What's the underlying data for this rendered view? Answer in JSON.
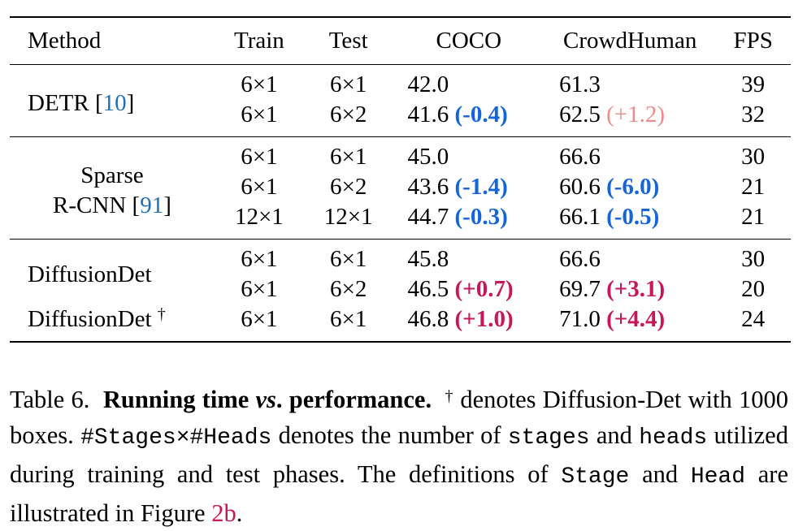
{
  "table": {
    "headers": {
      "method": "Method",
      "train": "Train",
      "test": "Test",
      "coco": "COCO",
      "crowdhuman": "CrowdHuman",
      "fps": "FPS"
    },
    "groups": {
      "detr": {
        "method_name": "DETR [",
        "cite": "10",
        "method_close": "]",
        "rows": [
          {
            "train": "6×1",
            "test": "6×1",
            "coco": "42.0",
            "coco_delta": "",
            "crowd": "61.3",
            "crowd_delta": "",
            "fps": "39"
          },
          {
            "train": "6×1",
            "test": "6×2",
            "coco": "41.6",
            "coco_delta": "(-0.4)",
            "crowd": "62.5",
            "crowd_delta": "(+1.2)",
            "fps": "32"
          }
        ]
      },
      "sparse": {
        "method_line1": "Sparse",
        "method_line2": "R-CNN [",
        "cite": "91",
        "method_close": "]",
        "rows": [
          {
            "train": "6×1",
            "test": "6×1",
            "coco": "45.0",
            "coco_delta": "",
            "crowd": "66.6",
            "crowd_delta": "",
            "fps": "30"
          },
          {
            "train": "6×1",
            "test": "6×2",
            "coco": "43.6",
            "coco_delta": "(-1.4)",
            "crowd": "60.6",
            "crowd_delta": "(-6.0)",
            "fps": "21"
          },
          {
            "train": "12×1",
            "test": "12×1",
            "coco": "44.7",
            "coco_delta": "(-0.3)",
            "crowd": "66.1",
            "crowd_delta": "(-0.5)",
            "fps": "21"
          }
        ]
      },
      "diffusion": {
        "method_a": "DiffusionDet",
        "method_b": "DiffusionDet",
        "dagger": "†",
        "rows": [
          {
            "train": "6×1",
            "test": "6×1",
            "coco": "45.8",
            "coco_delta": "",
            "crowd": "66.6",
            "crowd_delta": "",
            "fps": "30"
          },
          {
            "train": "6×1",
            "test": "6×2",
            "coco": "46.5",
            "coco_delta": "(+0.7)",
            "crowd": "69.7",
            "crowd_delta": "(+3.1)",
            "fps": "20"
          },
          {
            "train": "6×1",
            "test": "6×1",
            "coco": "46.8",
            "coco_delta": "(+1.0)",
            "crowd": "71.0",
            "crowd_delta": "(+4.4)",
            "fps": "24"
          }
        ]
      }
    }
  },
  "caption": {
    "label": "Table 6.",
    "title_a": "Running time",
    "title_vs": "vs",
    "title_b": ". performance.",
    "dagger": "†",
    "text1": " denotes Diffusion-Det with 1000 boxes. ",
    "mono1": "#Stages×#Heads",
    "text2": " denotes the number of ",
    "mono2": "stages",
    "text3": " and ",
    "mono3": "heads",
    "text4": " utilized during training and test phases. The definitions of ",
    "mono4": "Stage",
    "text5": " and ",
    "mono5": "Head",
    "text6": " are illustrated in Figure ",
    "fig_ref": "2b",
    "text7": "."
  },
  "colors": {
    "cite": "#1f6fb3",
    "delta_blue": "#1565d8",
    "delta_light": "#ee8a8a",
    "delta_pink": "#c8165a"
  }
}
